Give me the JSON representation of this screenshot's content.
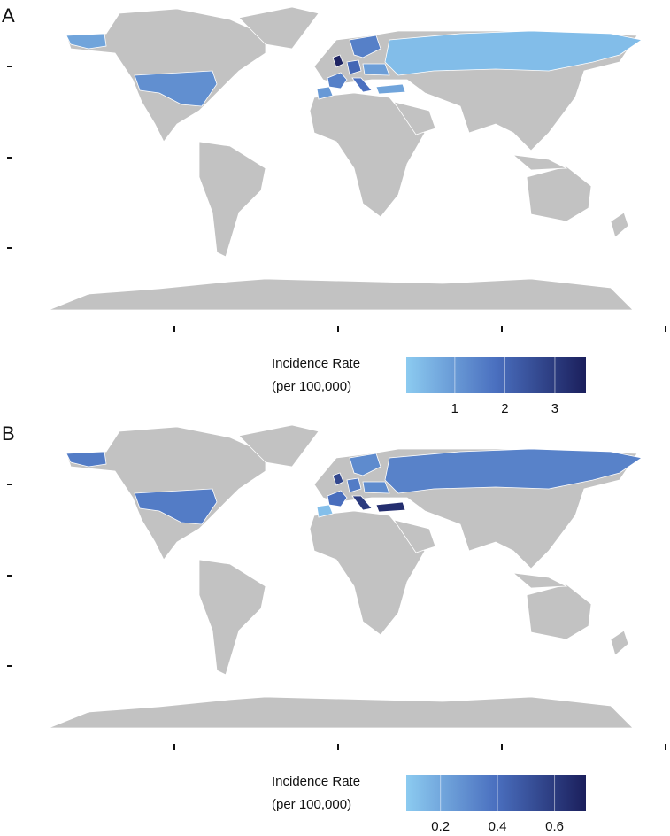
{
  "maps": [
    {
      "type": "choropleth",
      "label": "A",
      "values": [
        0.8,
        1.2,
        0.3,
        3.5,
        1.5,
        2.0,
        1.8,
        1.0,
        0.8,
        1.5,
        0.9
      ],
      "legend_title": [
        "Incidence Rate",
        "(per 100,000)"
      ],
      "colors": [
        "#8ccbf0",
        "#4a6fbf",
        "#1b1f5c"
      ],
      "lim": [
        0.03,
        3.62
      ],
      "ticks": [
        1,
        2,
        3
      ]
    },
    {
      "type": "choropleth",
      "label": "B",
      "values": [
        0.35,
        0.35,
        0.33,
        0.55,
        0.4,
        0.35,
        0.6,
        0.12,
        0.65,
        0.3,
        0.3
      ],
      "legend_title": [
        "Incidence Rate",
        "(per 100,000)"
      ],
      "colors": [
        "#8ccbf0",
        "#4a6fbf",
        "#1b1f5c"
      ],
      "lim": [
        0.08,
        0.71
      ],
      "ticks": [
        0.2,
        0.4,
        0.6
      ]
    }
  ]
}
